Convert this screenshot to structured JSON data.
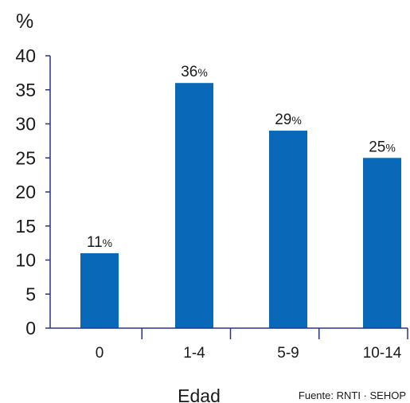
{
  "chart_data": {
    "type": "bar",
    "categories": [
      "0",
      "1-4",
      "5-9",
      "10-14"
    ],
    "values": [
      11,
      36,
      29,
      25
    ],
    "data_labels": [
      {
        "num": "11",
        "unit": "%"
      },
      {
        "num": "36",
        "unit": "%"
      },
      {
        "num": "29",
        "unit": "%"
      },
      {
        "num": "25",
        "unit": "%"
      }
    ],
    "ylabel": "%",
    "xlabel": "Edad",
    "source": "Fuente: RNTI · SEHOP",
    "ylim": [
      0,
      40
    ],
    "yticks": [
      0,
      5,
      10,
      15,
      20,
      25,
      30,
      35,
      40
    ],
    "grid": false,
    "legend": "none",
    "colors": {
      "bar": "#0a68b8",
      "axis": "#27348b"
    }
  }
}
